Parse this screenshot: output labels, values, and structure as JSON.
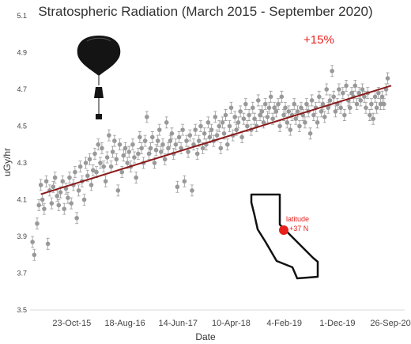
{
  "chart_data": {
    "type": "scatter",
    "title": "Stratospheric Radiation (March 2015 - September 2020)",
    "xlabel": "Date",
    "ylabel": "uGy/hr",
    "xlim": [
      "2015-03-01",
      "2020-12-15"
    ],
    "ylim": [
      3.5,
      5.1
    ],
    "y_ticks": [
      "3.5",
      "3.7",
      "3.9",
      "4.1",
      "4.3",
      "4.5",
      "4.7",
      "4.9",
      "5.1"
    ],
    "x_ticks": [
      {
        "date": "2015-10-23",
        "label": "23-Oct-15"
      },
      {
        "date": "2016-08-18",
        "label": "18-Aug-16"
      },
      {
        "date": "2017-06-14",
        "label": "14-Jun-17"
      },
      {
        "date": "2018-04-10",
        "label": "10-Apr-18"
      },
      {
        "date": "2019-02-04",
        "label": "4-Feb-19"
      },
      {
        "date": "2019-12-01",
        "label": "1-Dec-19"
      },
      {
        "date": "2020-09-26",
        "label": "26-Sep-20"
      }
    ],
    "grid": false,
    "colors": {
      "points": "#999999",
      "trend": "#8b1a1a",
      "annotation": "#e8201c"
    },
    "trend": {
      "start": [
        "2015-05-01",
        4.13
      ],
      "end": [
        "2020-09-30",
        4.72
      ]
    },
    "annotations": [
      {
        "text": "+15%",
        "color": "#e8201c"
      },
      {
        "text": "latitude",
        "color": "#e8201c"
      },
      {
        "text": "+37 N",
        "color": "#e8201c"
      }
    ],
    "points": [
      [
        "2015-03-15",
        3.87
      ],
      [
        "2015-03-25",
        3.8
      ],
      [
        "2015-04-10",
        3.97
      ],
      [
        "2015-04-20",
        4.07
      ],
      [
        "2015-05-01",
        4.18
      ],
      [
        "2015-05-10",
        4.1
      ],
      [
        "2015-05-20",
        4.05
      ],
      [
        "2015-06-01",
        4.2
      ],
      [
        "2015-06-10",
        3.86
      ],
      [
        "2015-06-20",
        4.15
      ],
      [
        "2015-07-01",
        4.08
      ],
      [
        "2015-07-10",
        4.17
      ],
      [
        "2015-07-20",
        4.22
      ],
      [
        "2015-08-01",
        4.12
      ],
      [
        "2015-08-10",
        4.07
      ],
      [
        "2015-08-20",
        4.14
      ],
      [
        "2015-09-01",
        4.2
      ],
      [
        "2015-09-10",
        4.05
      ],
      [
        "2015-09-20",
        4.16
      ],
      [
        "2015-10-01",
        4.11
      ],
      [
        "2015-10-10",
        4.22
      ],
      [
        "2015-10-20",
        4.08
      ],
      [
        "2015-11-01",
        4.18
      ],
      [
        "2015-11-10",
        4.25
      ],
      [
        "2015-11-20",
        4.0
      ],
      [
        "2015-12-01",
        4.15
      ],
      [
        "2015-12-10",
        4.28
      ],
      [
        "2015-12-20",
        4.2
      ],
      [
        "2016-01-01",
        4.1
      ],
      [
        "2016-01-10",
        4.3
      ],
      [
        "2016-01-20",
        4.23
      ],
      [
        "2016-02-01",
        4.32
      ],
      [
        "2016-02-10",
        4.18
      ],
      [
        "2016-02-20",
        4.26
      ],
      [
        "2016-03-01",
        4.35
      ],
      [
        "2016-03-10",
        4.25
      ],
      [
        "2016-03-20",
        4.4
      ],
      [
        "2016-04-01",
        4.3
      ],
      [
        "2016-04-10",
        4.38
      ],
      [
        "2016-04-20",
        4.28
      ],
      [
        "2016-05-01",
        4.2
      ],
      [
        "2016-05-10",
        4.33
      ],
      [
        "2016-05-20",
        4.45
      ],
      [
        "2016-06-01",
        4.28
      ],
      [
        "2016-06-10",
        4.36
      ],
      [
        "2016-06-20",
        4.42
      ],
      [
        "2016-07-01",
        4.32
      ],
      [
        "2016-07-10",
        4.15
      ],
      [
        "2016-07-20",
        4.4
      ],
      [
        "2016-08-01",
        4.25
      ],
      [
        "2016-08-10",
        4.34
      ],
      [
        "2016-08-20",
        4.38
      ],
      [
        "2016-09-01",
        4.3
      ],
      [
        "2016-09-10",
        4.36
      ],
      [
        "2016-09-20",
        4.28
      ],
      [
        "2016-10-01",
        4.4
      ],
      [
        "2016-10-10",
        4.33
      ],
      [
        "2016-10-20",
        4.22
      ],
      [
        "2016-11-01",
        4.35
      ],
      [
        "2016-11-10",
        4.44
      ],
      [
        "2016-11-20",
        4.38
      ],
      [
        "2016-12-01",
        4.3
      ],
      [
        "2016-12-10",
        4.42
      ],
      [
        "2016-12-20",
        4.55
      ],
      [
        "2017-01-01",
        4.35
      ],
      [
        "2017-01-10",
        4.38
      ],
      [
        "2017-01-20",
        4.44
      ],
      [
        "2017-02-01",
        4.3
      ],
      [
        "2017-02-10",
        4.37
      ],
      [
        "2017-02-20",
        4.42
      ],
      [
        "2017-03-01",
        4.48
      ],
      [
        "2017-03-10",
        4.36
      ],
      [
        "2017-03-20",
        4.4
      ],
      [
        "2017-04-01",
        4.32
      ],
      [
        "2017-04-10",
        4.52
      ],
      [
        "2017-04-20",
        4.38
      ],
      [
        "2017-05-01",
        4.42
      ],
      [
        "2017-05-10",
        4.46
      ],
      [
        "2017-05-20",
        4.35
      ],
      [
        "2017-06-01",
        4.4
      ],
      [
        "2017-06-10",
        4.17
      ],
      [
        "2017-06-20",
        4.44
      ],
      [
        "2017-07-01",
        4.38
      ],
      [
        "2017-07-10",
        4.48
      ],
      [
        "2017-07-20",
        4.2
      ],
      [
        "2017-08-01",
        4.42
      ],
      [
        "2017-08-10",
        4.36
      ],
      [
        "2017-08-20",
        4.45
      ],
      [
        "2017-09-01",
        4.15
      ],
      [
        "2017-09-10",
        4.4
      ],
      [
        "2017-09-20",
        4.48
      ],
      [
        "2017-10-01",
        4.35
      ],
      [
        "2017-10-10",
        4.42
      ],
      [
        "2017-10-20",
        4.5
      ],
      [
        "2017-11-01",
        4.38
      ],
      [
        "2017-11-10",
        4.46
      ],
      [
        "2017-11-20",
        4.4
      ],
      [
        "2017-12-01",
        4.52
      ],
      [
        "2017-12-10",
        4.44
      ],
      [
        "2017-12-20",
        4.48
      ],
      [
        "2018-01-01",
        4.42
      ],
      [
        "2018-01-10",
        4.55
      ],
      [
        "2018-01-20",
        4.45
      ],
      [
        "2018-02-01",
        4.5
      ],
      [
        "2018-02-10",
        4.38
      ],
      [
        "2018-02-20",
        4.52
      ],
      [
        "2018-03-01",
        4.46
      ],
      [
        "2018-03-10",
        4.56
      ],
      [
        "2018-03-20",
        4.4
      ],
      [
        "2018-04-01",
        4.5
      ],
      [
        "2018-04-10",
        4.6
      ],
      [
        "2018-04-20",
        4.45
      ],
      [
        "2018-05-01",
        4.55
      ],
      [
        "2018-05-10",
        4.48
      ],
      [
        "2018-05-20",
        4.52
      ],
      [
        "2018-06-01",
        4.58
      ],
      [
        "2018-06-10",
        4.44
      ],
      [
        "2018-06-20",
        4.54
      ],
      [
        "2018-07-01",
        4.62
      ],
      [
        "2018-07-10",
        4.5
      ],
      [
        "2018-07-20",
        4.56
      ],
      [
        "2018-08-01",
        4.48
      ],
      [
        "2018-08-10",
        4.6
      ],
      [
        "2018-08-20",
        4.54
      ],
      [
        "2018-09-01",
        4.5
      ],
      [
        "2018-09-10",
        4.64
      ],
      [
        "2018-09-20",
        4.56
      ],
      [
        "2018-10-01",
        4.58
      ],
      [
        "2018-10-10",
        4.52
      ],
      [
        "2018-10-20",
        4.62
      ],
      [
        "2018-11-01",
        4.55
      ],
      [
        "2018-11-10",
        4.6
      ],
      [
        "2018-11-20",
        4.66
      ],
      [
        "2018-12-01",
        4.54
      ],
      [
        "2018-12-10",
        4.6
      ],
      [
        "2018-12-20",
        4.58
      ],
      [
        "2019-01-01",
        4.62
      ],
      [
        "2019-01-10",
        4.5
      ],
      [
        "2019-01-20",
        4.66
      ],
      [
        "2019-02-01",
        4.56
      ],
      [
        "2019-02-10",
        4.6
      ],
      [
        "2019-02-20",
        4.52
      ],
      [
        "2019-03-01",
        4.58
      ],
      [
        "2019-03-10",
        4.48
      ],
      [
        "2019-03-20",
        4.56
      ],
      [
        "2019-04-01",
        4.62
      ],
      [
        "2019-04-10",
        4.54
      ],
      [
        "2019-04-20",
        4.58
      ],
      [
        "2019-05-01",
        4.5
      ],
      [
        "2019-05-10",
        4.6
      ],
      [
        "2019-05-20",
        4.56
      ],
      [
        "2019-06-01",
        4.52
      ],
      [
        "2019-06-10",
        4.62
      ],
      [
        "2019-06-20",
        4.58
      ],
      [
        "2019-07-01",
        4.46
      ],
      [
        "2019-07-10",
        4.64
      ],
      [
        "2019-07-20",
        4.56
      ],
      [
        "2019-08-01",
        4.6
      ],
      [
        "2019-08-10",
        4.52
      ],
      [
        "2019-08-20",
        4.66
      ],
      [
        "2019-09-01",
        4.58
      ],
      [
        "2019-09-10",
        4.62
      ],
      [
        "2019-09-20",
        4.55
      ],
      [
        "2019-10-01",
        4.7
      ],
      [
        "2019-10-10",
        4.6
      ],
      [
        "2019-10-20",
        4.64
      ],
      [
        "2019-11-01",
        4.8
      ],
      [
        "2019-11-10",
        4.66
      ],
      [
        "2019-11-20",
        4.58
      ],
      [
        "2019-12-01",
        4.62
      ],
      [
        "2019-12-10",
        4.7
      ],
      [
        "2019-12-20",
        4.6
      ],
      [
        "2020-01-01",
        4.68
      ],
      [
        "2020-01-10",
        4.56
      ],
      [
        "2020-01-20",
        4.72
      ],
      [
        "2020-02-01",
        4.64
      ],
      [
        "2020-02-10",
        4.6
      ],
      [
        "2020-02-20",
        4.68
      ],
      [
        "2020-03-01",
        4.66
      ],
      [
        "2020-03-10",
        4.72
      ],
      [
        "2020-03-20",
        4.62
      ],
      [
        "2020-04-01",
        4.68
      ],
      [
        "2020-04-10",
        4.64
      ],
      [
        "2020-04-20",
        4.7
      ],
      [
        "2020-05-01",
        4.66
      ],
      [
        "2020-05-10",
        4.6
      ],
      [
        "2020-05-20",
        4.68
      ],
      [
        "2020-06-01",
        4.56
      ],
      [
        "2020-06-10",
        4.62
      ],
      [
        "2020-06-20",
        4.54
      ],
      [
        "2020-07-01",
        4.66
      ],
      [
        "2020-07-10",
        4.6
      ],
      [
        "2020-07-20",
        4.68
      ],
      [
        "2020-08-01",
        4.62
      ],
      [
        "2020-08-10",
        4.66
      ],
      [
        "2020-08-20",
        4.62
      ],
      [
        "2020-09-01",
        4.7
      ],
      [
        "2020-09-10",
        4.76
      ]
    ]
  }
}
